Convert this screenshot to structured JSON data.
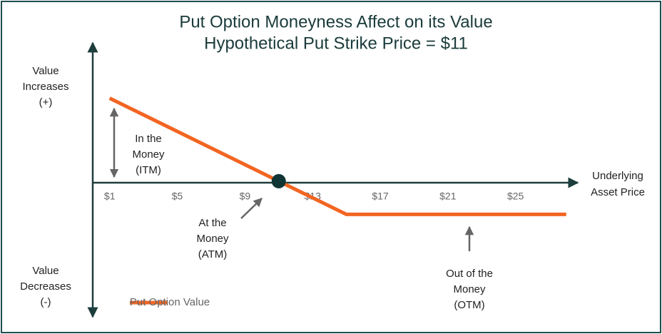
{
  "chart_data": {
    "type": "line",
    "title": "Put Option Moneyness Affect on its Value",
    "subtitle": "Hypothetical Put Strike Price = $11",
    "x_label": [
      "Underlying",
      "Asset Price"
    ],
    "y_label_top": [
      "Value",
      "Increases",
      "(+)"
    ],
    "y_label_bottom": [
      "Value",
      "Decreases",
      "(-)"
    ],
    "annotations": [
      [
        "In the",
        "Money",
        "(ITM)"
      ],
      [
        "At the",
        "Money",
        "(ATM)"
      ],
      [
        "Out of the",
        "Money",
        "(OTM)"
      ]
    ],
    "xlim": [
      0,
      28.6
    ],
    "xticks": [
      {
        "value": 1,
        "label": "$1"
      },
      {
        "value": 5,
        "label": "$5"
      },
      {
        "value": 9,
        "label": "$9"
      },
      {
        "value": 13,
        "label": "$13"
      },
      {
        "value": 17,
        "label": "$17"
      },
      {
        "value": 21,
        "label": "$21"
      },
      {
        "value": 25,
        "label": "$25"
      }
    ],
    "ylim": [
      -16,
      16.5
    ],
    "series": [
      {
        "name": "Put Option Value",
        "color": "#f26522",
        "x": [
          1,
          11,
          15,
          28
        ],
        "values": [
          10,
          0,
          -4,
          -4
        ]
      }
    ],
    "legend": "lower left"
  }
}
